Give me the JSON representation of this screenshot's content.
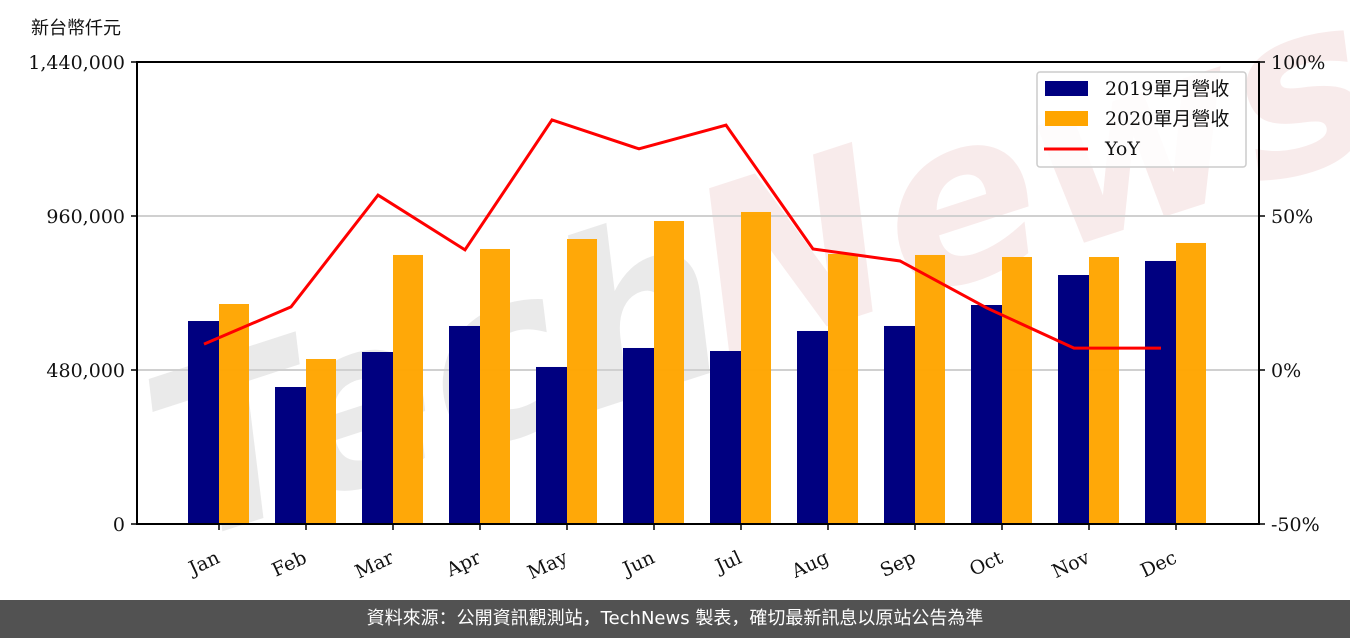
{
  "chart_data": {
    "type": "bar",
    "title": "",
    "ylabel": "新台幣仟元",
    "xlabel": "",
    "categories": [
      "Jan",
      "Feb",
      "Mar",
      "Apr",
      "May",
      "Jun",
      "Jul",
      "Aug",
      "Sep",
      "Oct",
      "Nov",
      "Dec"
    ],
    "series": [
      {
        "name": "2019單月營收",
        "type": "bar",
        "axis": "left",
        "color": "#000080",
        "values": [
          632700,
          427000,
          536100,
          617200,
          489400,
          548600,
          539200,
          601600,
          617200,
          682600,
          776100,
          819800
        ]
      },
      {
        "name": "2020單月營收",
        "type": "bar",
        "axis": "left",
        "color": "#FFA500",
        "values": [
          685700,
          514300,
          838500,
          857200,
          888300,
          944400,
          972500,
          841600,
          838500,
          832200,
          832200,
          875900
        ]
      },
      {
        "name": "YoY",
        "type": "line",
        "axis": "right",
        "color": "#FF0000",
        "values": [
          8.4,
          20.5,
          56.8,
          39.0,
          81.2,
          71.8,
          79.5,
          39.3,
          35.4,
          20.1,
          7.1,
          7.1
        ]
      }
    ],
    "ylim": [
      0,
      1440000
    ],
    "yticks": [
      0,
      480000,
      960000,
      1440000
    ],
    "ytick_labels": [
      "0",
      "480,000",
      "960,000",
      "1,440,000"
    ],
    "y2lim": [
      -50,
      100
    ],
    "y2ticks": [
      -50,
      0,
      50,
      100
    ],
    "y2tick_labels": [
      "-50%",
      "0%",
      "50%",
      "100%"
    ],
    "grid": "horizontal",
    "legend_position": "upper right",
    "watermark": "TechNews"
  },
  "unit_label": "新台幣仟元",
  "footer": "資料來源：公開資訊觀測站，TechNews 製表，確切最新訊息以原站公告為準"
}
